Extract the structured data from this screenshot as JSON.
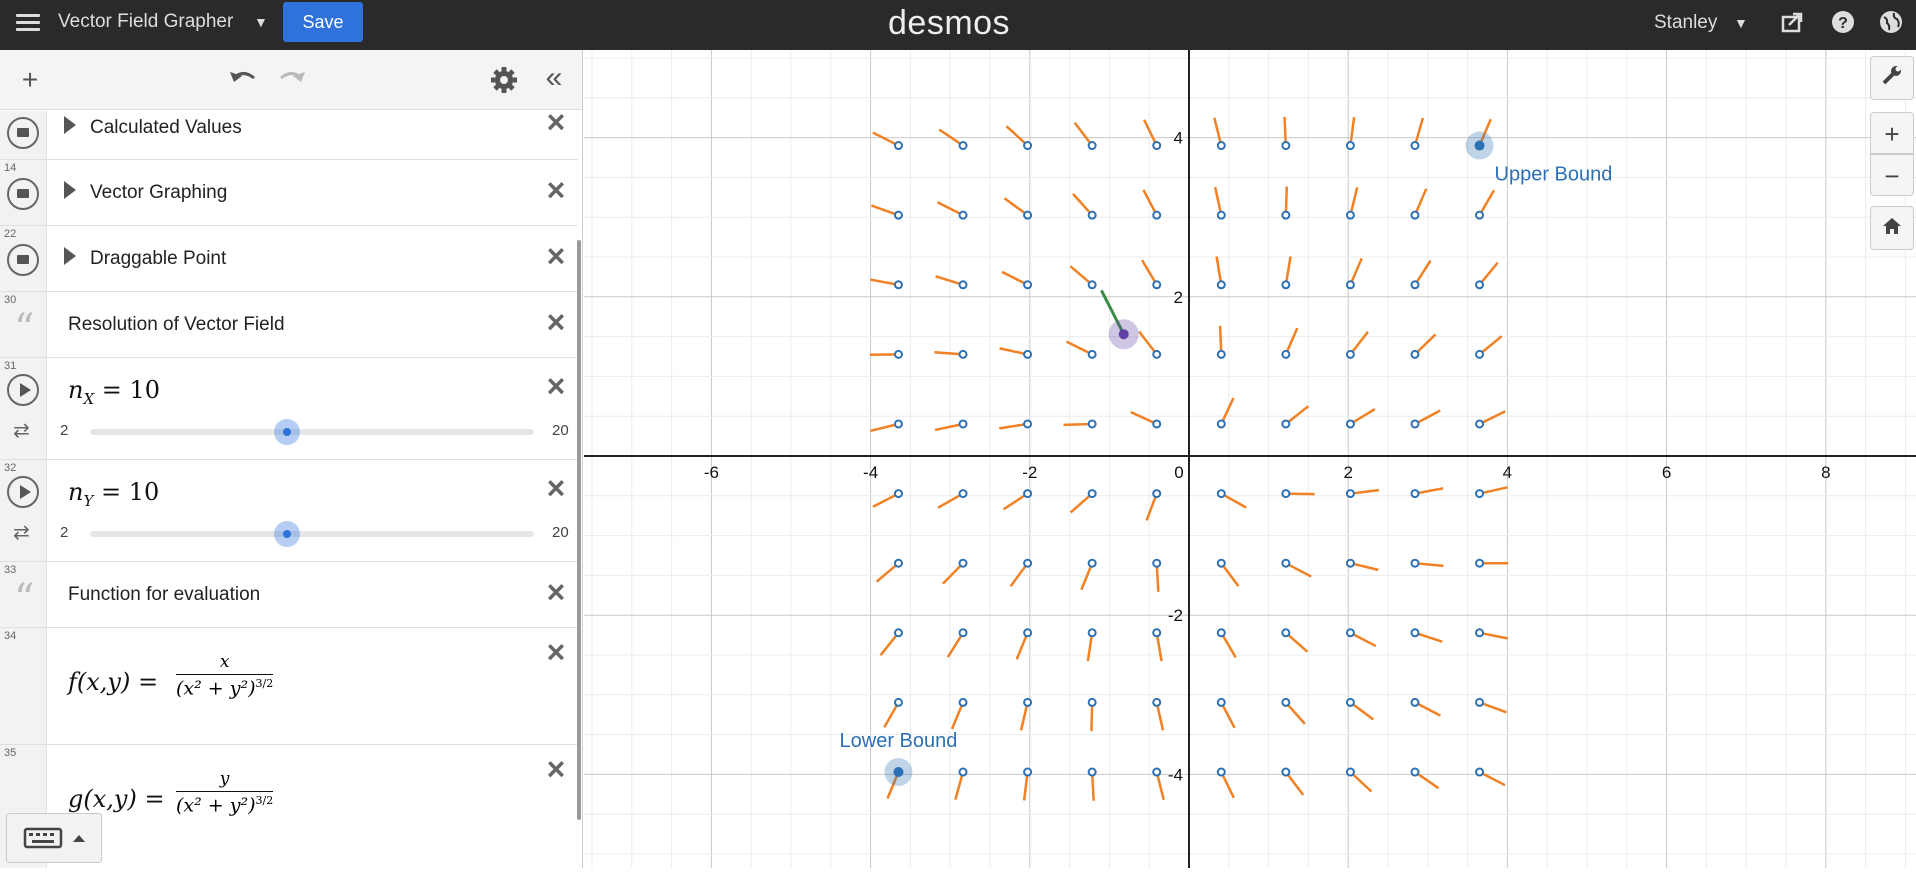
{
  "app": {
    "title": "Vector Field Grapher",
    "save_label": "Save",
    "brand": "desmos",
    "user": "Stanley"
  },
  "expressions": {
    "folders": [
      {
        "num": "",
        "label": "Calculated Values"
      },
      {
        "num": "14",
        "label": "Vector Graphing"
      },
      {
        "num": "22",
        "label": "Draggable Point"
      }
    ],
    "note1": {
      "num": "30",
      "text": "Resolution of Vector Field"
    },
    "slider_nx": {
      "num": "31",
      "var": "n",
      "sub": "X",
      "value": "10",
      "min": "2",
      "max": "20",
      "fraction": 0.4444
    },
    "slider_ny": {
      "num": "32",
      "var": "n",
      "sub": "Y",
      "value": "10",
      "min": "2",
      "max": "20",
      "fraction": 0.4444
    },
    "note2": {
      "num": "33",
      "text": "Function for evaluation"
    },
    "func_f": {
      "num": "34",
      "lhs": "f(x,y) =",
      "numerator": "x",
      "denominator": "(x² + y²)",
      "exponent": "3/2"
    },
    "func_g": {
      "num": "35",
      "lhs": "g(x,y) =",
      "numerator": "y",
      "denominator": "(x² + y²)",
      "exponent": "3/2"
    }
  },
  "graph": {
    "x_ticks": [
      "-6",
      "-4",
      "-2",
      "0",
      "2",
      "4",
      "6",
      "8"
    ],
    "y_ticks": [
      "4",
      "2",
      "-2",
      "-4"
    ],
    "upper_label": "Upper Bound",
    "lower_label": "Lower Bound",
    "upper_bound": [
      3.65,
      3.9
    ],
    "lower_bound": [
      -3.65,
      -3.97
    ],
    "drag_point": [
      -0.82,
      1.53
    ],
    "colors": {
      "vector": "#f08124",
      "anchor": "#2d70b3",
      "drag": "#6042a6",
      "drag_vector": "#388c46"
    }
  }
}
